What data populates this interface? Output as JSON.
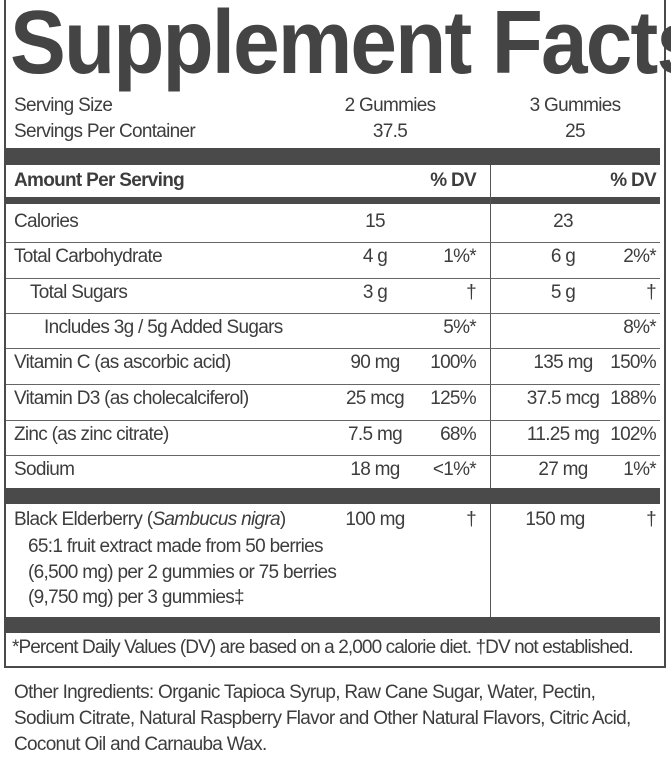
{
  "title": "Supplement Facts",
  "serving_size": {
    "label": "Serving Size",
    "col1": "2 Gummies",
    "col2": "3 Gummies"
  },
  "servings_per_container": {
    "label": "Servings Per Container",
    "col1": "37.5",
    "col2": "25"
  },
  "header": {
    "label": "Amount Per Serving",
    "dv1": "% DV",
    "dv2": "% DV"
  },
  "rows": [
    {
      "label": "Calories",
      "amt1": "15",
      "dv1": "",
      "amt2": "23",
      "dv2": ""
    },
    {
      "label": "Total Carbohydrate",
      "amt1": "4 g",
      "dv1": "1%*",
      "amt2": "6 g",
      "dv2": "2%*"
    },
    {
      "label": "Total Sugars",
      "amt1": "3 g",
      "dv1": "†",
      "amt2": "5 g",
      "dv2": "†"
    },
    {
      "label": "Includes 3g / 5g Added Sugars",
      "amt1": "",
      "dv1": "5%*",
      "amt2": "",
      "dv2": "8%*"
    },
    {
      "label": "Vitamin C (as ascorbic acid)",
      "amt1": "90 mg",
      "dv1": "100%",
      "amt2": "135 mg",
      "dv2": "150%"
    },
    {
      "label": "Vitamin D3 (as cholecalciferol)",
      "amt1": "25 mcg",
      "dv1": "125%",
      "amt2": "37.5 mcg",
      "dv2": "188%"
    },
    {
      "label": "Zinc (as zinc citrate)",
      "amt1": "7.5 mg",
      "dv1": "68%",
      "amt2": "11.25 mg",
      "dv2": "102%"
    },
    {
      "label": "Sodium",
      "amt1": "18 mg",
      "dv1": "<1%*",
      "amt2": "27 mg",
      "dv2": "1%*"
    }
  ],
  "elderberry": {
    "label": "Black Elderberry (",
    "latin": "Sambucus nigra",
    "close": ")",
    "amt1": "100 mg",
    "dv1": "†",
    "amt2": "150 mg",
    "dv2": "†",
    "desc": [
      "65:1 fruit extract made from 50 berries",
      "(6,500 mg) per 2 gummies or 75 berries",
      "(9,750 mg) per 3 gummies‡"
    ]
  },
  "footnote": "*Percent Daily Values (DV) are based on a 2,000 calorie diet. †DV not established.",
  "other_ingredients": [
    "Other Ingredients: Organic Tapioca Syrup, Raw Cane Sugar, Water, Pectin,",
    "Sodium Citrate, Natural Raspberry Flavor and Other Natural Flavors, Citric Acid,",
    "Coconut Oil and Carnauba Wax."
  ]
}
